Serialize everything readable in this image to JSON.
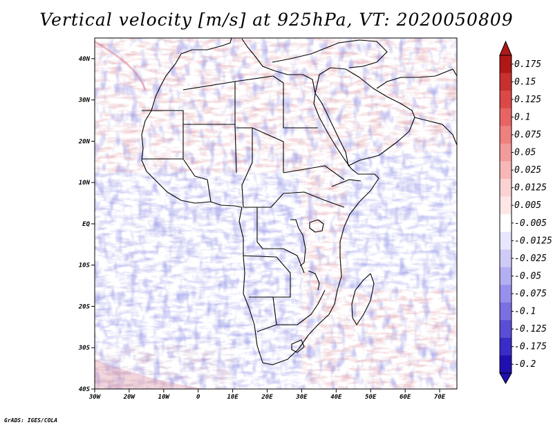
{
  "title": "Vertical velocity [m/s] at 925hPa, VT: 2020050809",
  "credit": "GrADS: IGES/COLA",
  "map": {
    "lon_range": [
      -30,
      75
    ],
    "lat_range": [
      -40,
      45
    ],
    "lat_ticks": [
      {
        "lat": 40,
        "label": "40N"
      },
      {
        "lat": 30,
        "label": "30N"
      },
      {
        "lat": 20,
        "label": "20N"
      },
      {
        "lat": 10,
        "label": "10N"
      },
      {
        "lat": 0,
        "label": "EQ"
      },
      {
        "lat": -10,
        "label": "10S"
      },
      {
        "lat": -20,
        "label": "20S"
      },
      {
        "lat": -30,
        "label": "30S"
      },
      {
        "lat": -40,
        "label": "40S"
      }
    ],
    "lon_ticks": [
      {
        "lon": -30,
        "label": "30W"
      },
      {
        "lon": -20,
        "label": "20W"
      },
      {
        "lon": -10,
        "label": "10W"
      },
      {
        "lon": 0,
        "label": "0"
      },
      {
        "lon": 10,
        "label": "10E"
      },
      {
        "lon": 20,
        "label": "20E"
      },
      {
        "lon": 30,
        "label": "30E"
      },
      {
        "lon": 40,
        "label": "40E"
      },
      {
        "lon": 50,
        "label": "50E"
      },
      {
        "lon": 60,
        "label": "60E"
      },
      {
        "lon": 70,
        "label": "70E"
      }
    ]
  },
  "colorbar": {
    "labels": [
      "0.175",
      "0.15",
      "0.125",
      "0.1",
      "0.075",
      "0.05",
      "0.025",
      "0.0125",
      "0.005",
      "-0.005",
      "-0.0125",
      "-0.025",
      "-0.05",
      "-0.075",
      "-0.1",
      "-0.125",
      "-0.175",
      "-0.2"
    ],
    "colors": [
      "#b01818",
      "#c83030",
      "#dc4848",
      "#e86464",
      "#ef8080",
      "#f39a9a",
      "#f7b7b7",
      "#fad2d2",
      "#fde6e6",
      "#ffffff",
      "#e8e6fd",
      "#cfcbf8",
      "#b4aef3",
      "#9890ec",
      "#7a70e2",
      "#5a4ed6",
      "#3a2cc8",
      "#2010b2"
    ]
  }
}
